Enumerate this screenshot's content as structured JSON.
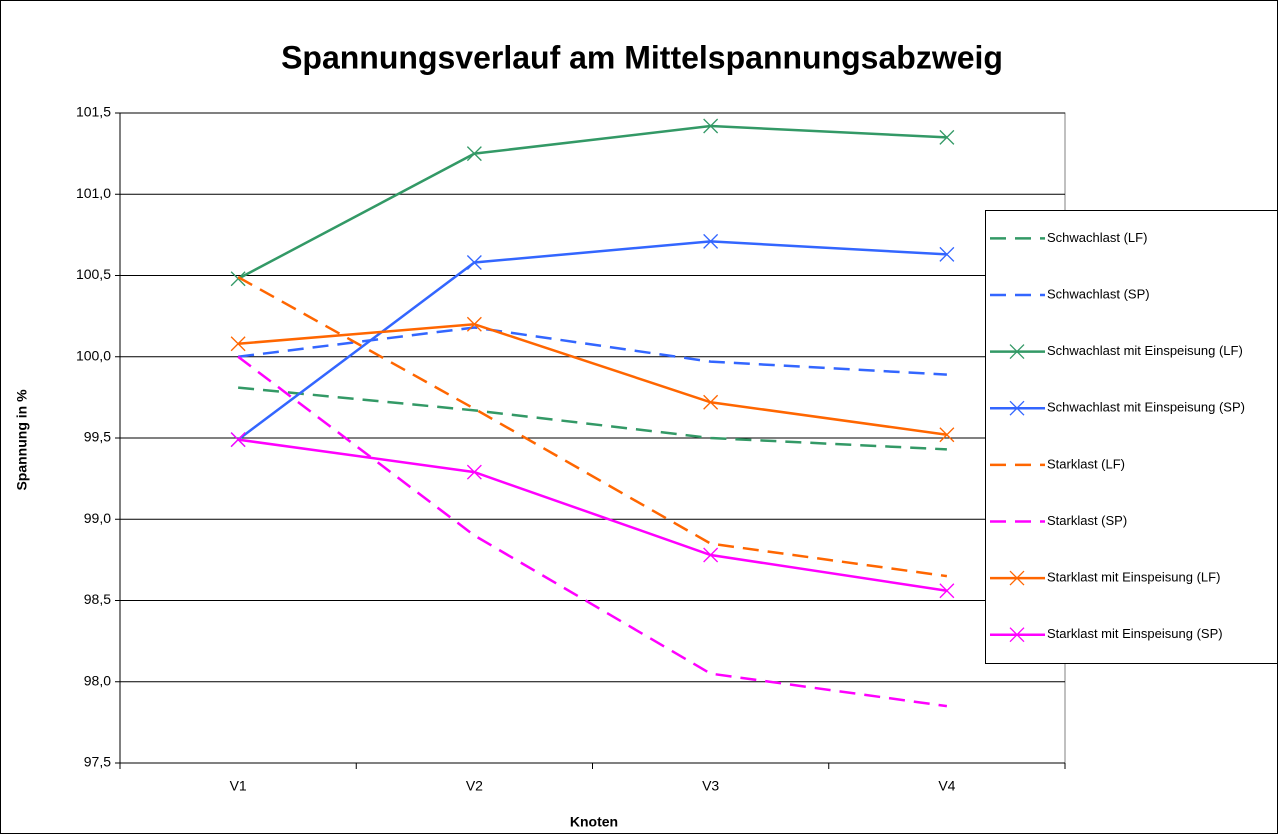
{
  "chart_data": {
    "type": "line",
    "title": "Spannungsverlauf am Mittelspannungsabzweig",
    "x_label": "Knoten",
    "y_label": "Spannung in %",
    "categories": [
      "V1",
      "V2",
      "V3",
      "V4"
    ],
    "ylim": [
      97.5,
      101.5
    ],
    "yticks": [
      {
        "value": 97.5,
        "label": "97,5"
      },
      {
        "value": 98.0,
        "label": "98,0"
      },
      {
        "value": 98.5,
        "label": "98,5"
      },
      {
        "value": 99.0,
        "label": "99,0"
      },
      {
        "value": 99.5,
        "label": "99,5"
      },
      {
        "value": 100.0,
        "label": "100,0"
      },
      {
        "value": 100.5,
        "label": "100,5"
      },
      {
        "value": 101.0,
        "label": "101,0"
      },
      {
        "value": 101.5,
        "label": "101,5"
      }
    ],
    "grid": true,
    "legend": "right",
    "series": [
      {
        "name": "Schwachlast (LF)",
        "color": "#339966",
        "dashed": true,
        "markers": false,
        "values": [
          99.81,
          99.67,
          99.5,
          99.43
        ]
      },
      {
        "name": "Schwachlast (SP)",
        "color": "#3366ff",
        "dashed": true,
        "markers": false,
        "values": [
          100.0,
          100.18,
          99.97,
          99.89
        ]
      },
      {
        "name": "Schwachlast mit Einspeisung (LF)",
        "color": "#339966",
        "dashed": false,
        "markers": true,
        "values": [
          100.48,
          101.25,
          101.42,
          101.35
        ]
      },
      {
        "name": "Schwachlast mit Einspeisung (SP)",
        "color": "#3366ff",
        "dashed": false,
        "markers": true,
        "values": [
          99.49,
          100.58,
          100.71,
          100.63
        ]
      },
      {
        "name": "Starklast (LF)",
        "color": "#ff6600",
        "dashed": true,
        "markers": false,
        "values": [
          100.49,
          99.68,
          98.85,
          98.65
        ]
      },
      {
        "name": "Starklast (SP)",
        "color": "#ff00ff",
        "dashed": true,
        "markers": false,
        "values": [
          100.0,
          98.9,
          98.05,
          97.85
        ]
      },
      {
        "name": "Starklast mit Einspeisung (LF)",
        "color": "#ff6600",
        "dashed": false,
        "markers": true,
        "values": [
          100.08,
          100.2,
          99.72,
          99.52
        ]
      },
      {
        "name": "Starklast mit Einspeisung (SP)",
        "color": "#ff00ff",
        "dashed": false,
        "markers": true,
        "values": [
          99.49,
          99.29,
          98.78,
          98.56
        ]
      }
    ]
  }
}
